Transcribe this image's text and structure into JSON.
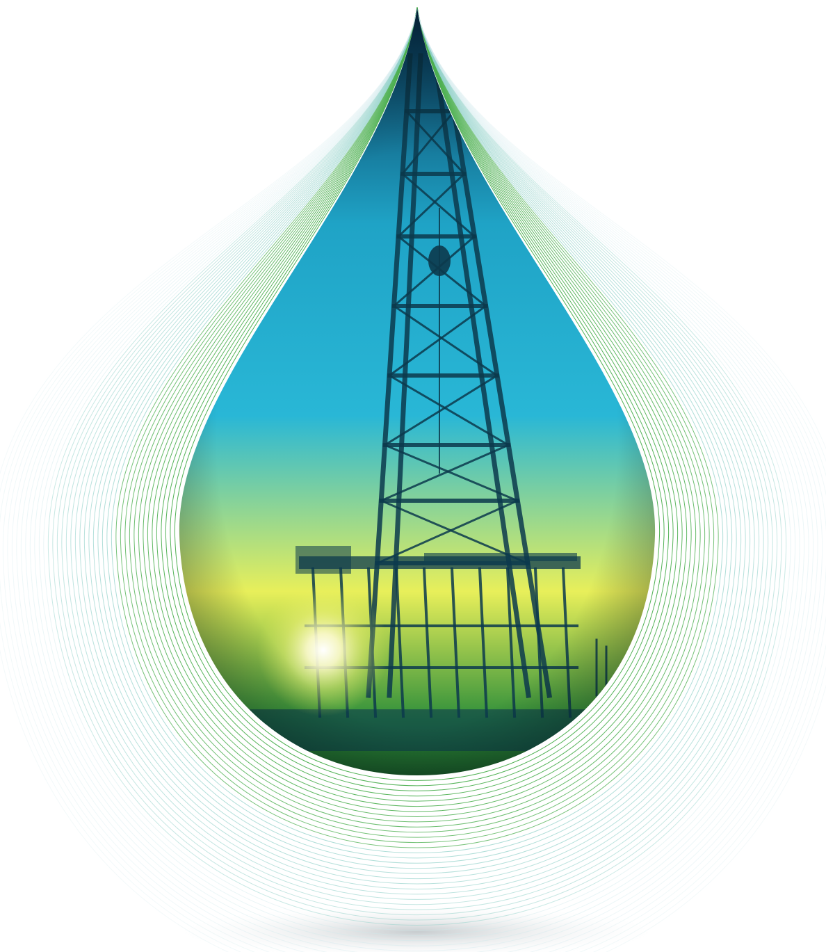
{
  "image": {
    "subject": "oil-drilling-rig-in-droplet",
    "colors": {
      "background": "#ffffff",
      "contour_light": "#cfe9ec",
      "contour_mid": "#8fd0c8",
      "contour_dark": "#4caf50",
      "drop_top": "#062a4a",
      "drop_mid": "#1fa3c6",
      "drop_cyan": "#29b7d6",
      "drop_yellow": "#e8ef5a",
      "drop_green": "#2f8f3a",
      "drop_bottom": "#0d3b1f",
      "rig_steel": "#0c3a4d",
      "flare": "#ffffff",
      "shadow": "#c9ced2"
    }
  }
}
